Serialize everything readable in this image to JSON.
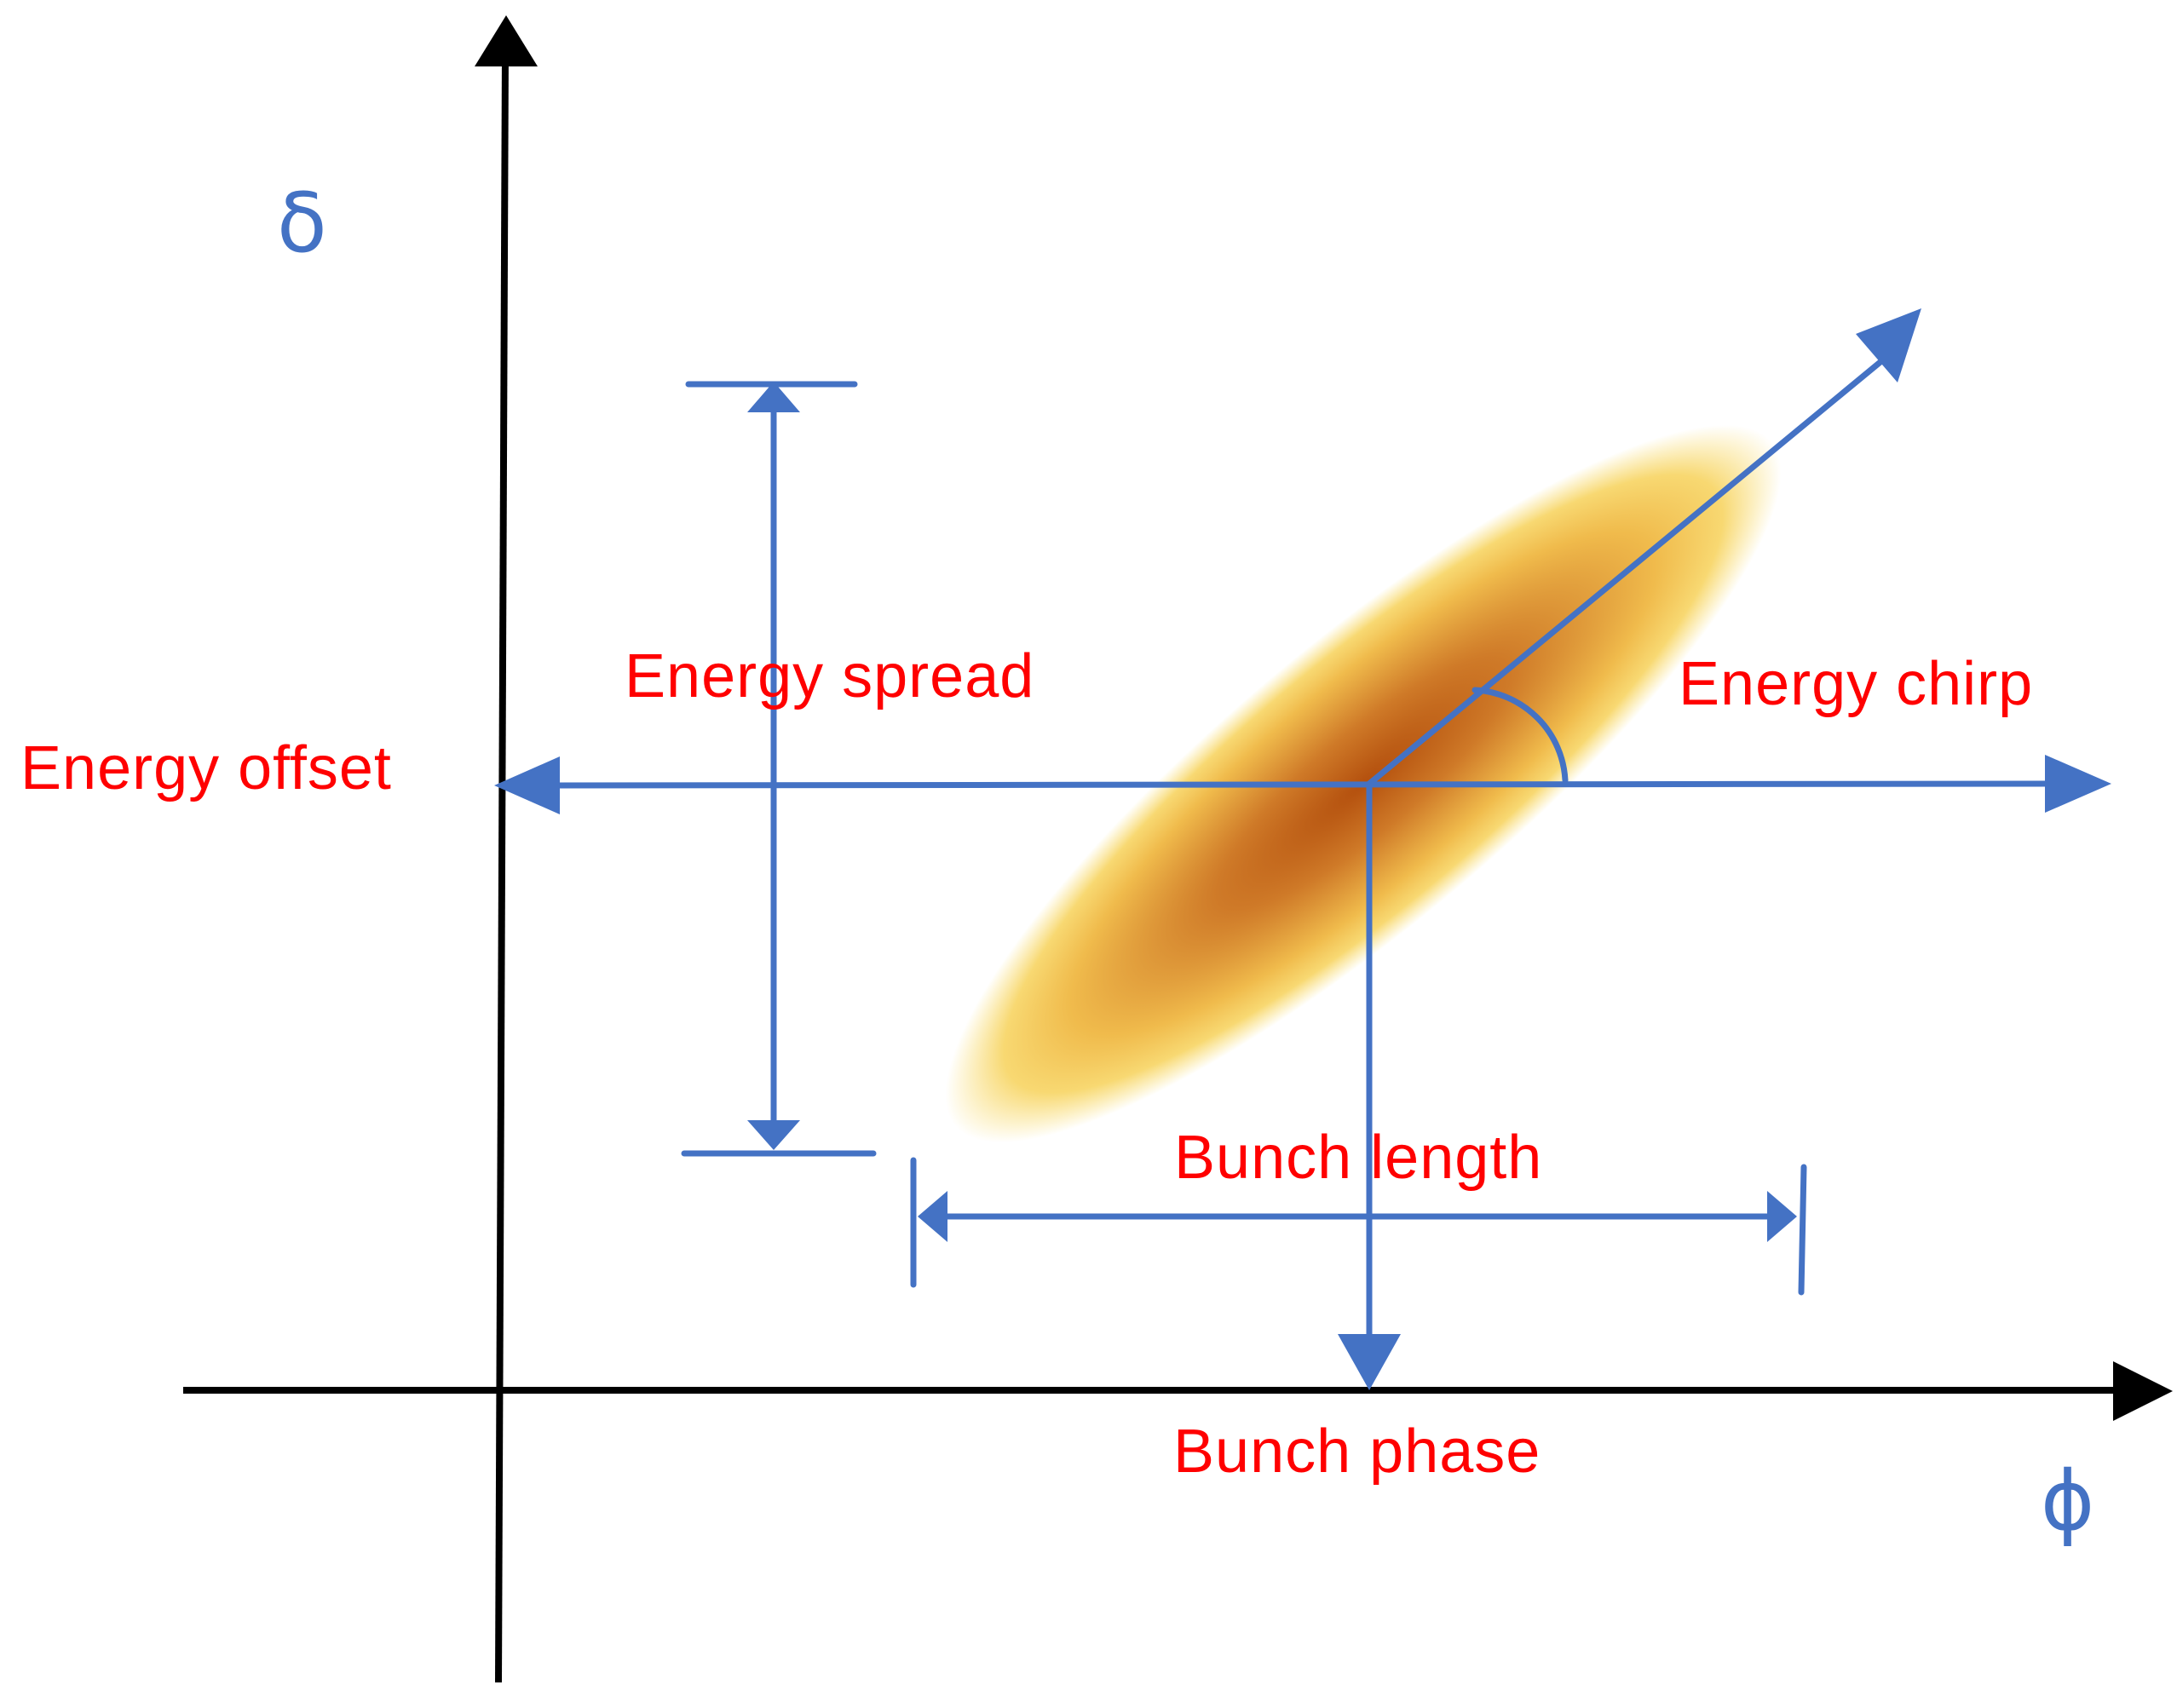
{
  "colors": {
    "axis": "#000000",
    "annotation": "#4472c4",
    "label": "#ff0000",
    "bunch_core": "#b85312",
    "bunch_edge": "#f6cf5a"
  },
  "axes": {
    "y_symbol": "δ",
    "x_symbol": "ϕ"
  },
  "labels": {
    "energy_spread": "Energy spread",
    "energy_offset": "Energy offset",
    "energy_chirp": "Energy chirp",
    "bunch_length": "Bunch length",
    "bunch_phase": "Bunch phase"
  }
}
